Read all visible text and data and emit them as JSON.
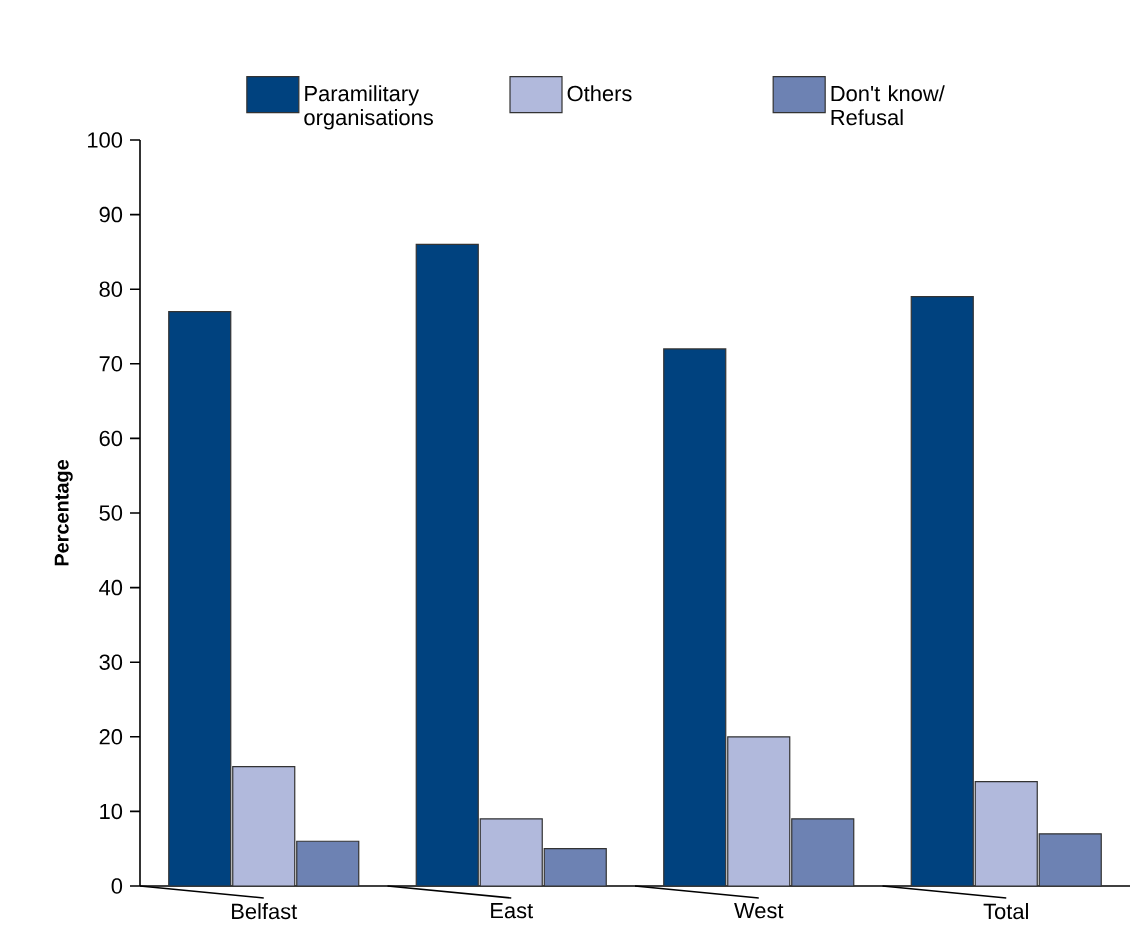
{
  "chart_data": {
    "type": "bar",
    "ylabel": "Percentage",
    "categories": [
      "Belfast",
      "East",
      "West",
      "Total"
    ],
    "series": [
      {
        "name": "Paramilitary organisations",
        "color": "#00427f",
        "values": [
          77,
          86,
          72,
          79
        ]
      },
      {
        "name": "Others",
        "color": "#b1b9dc",
        "values": [
          16,
          9,
          20,
          14
        ]
      },
      {
        "name": "Don't know/ Refusal",
        "color": "#6d82b3",
        "values": [
          6,
          5,
          9,
          7
        ]
      }
    ],
    "ylim": [
      0,
      100
    ],
    "yticks": [
      0,
      10,
      20,
      30,
      40,
      50,
      60,
      70,
      80,
      90,
      100
    ],
    "grid": false,
    "legend": "top"
  }
}
